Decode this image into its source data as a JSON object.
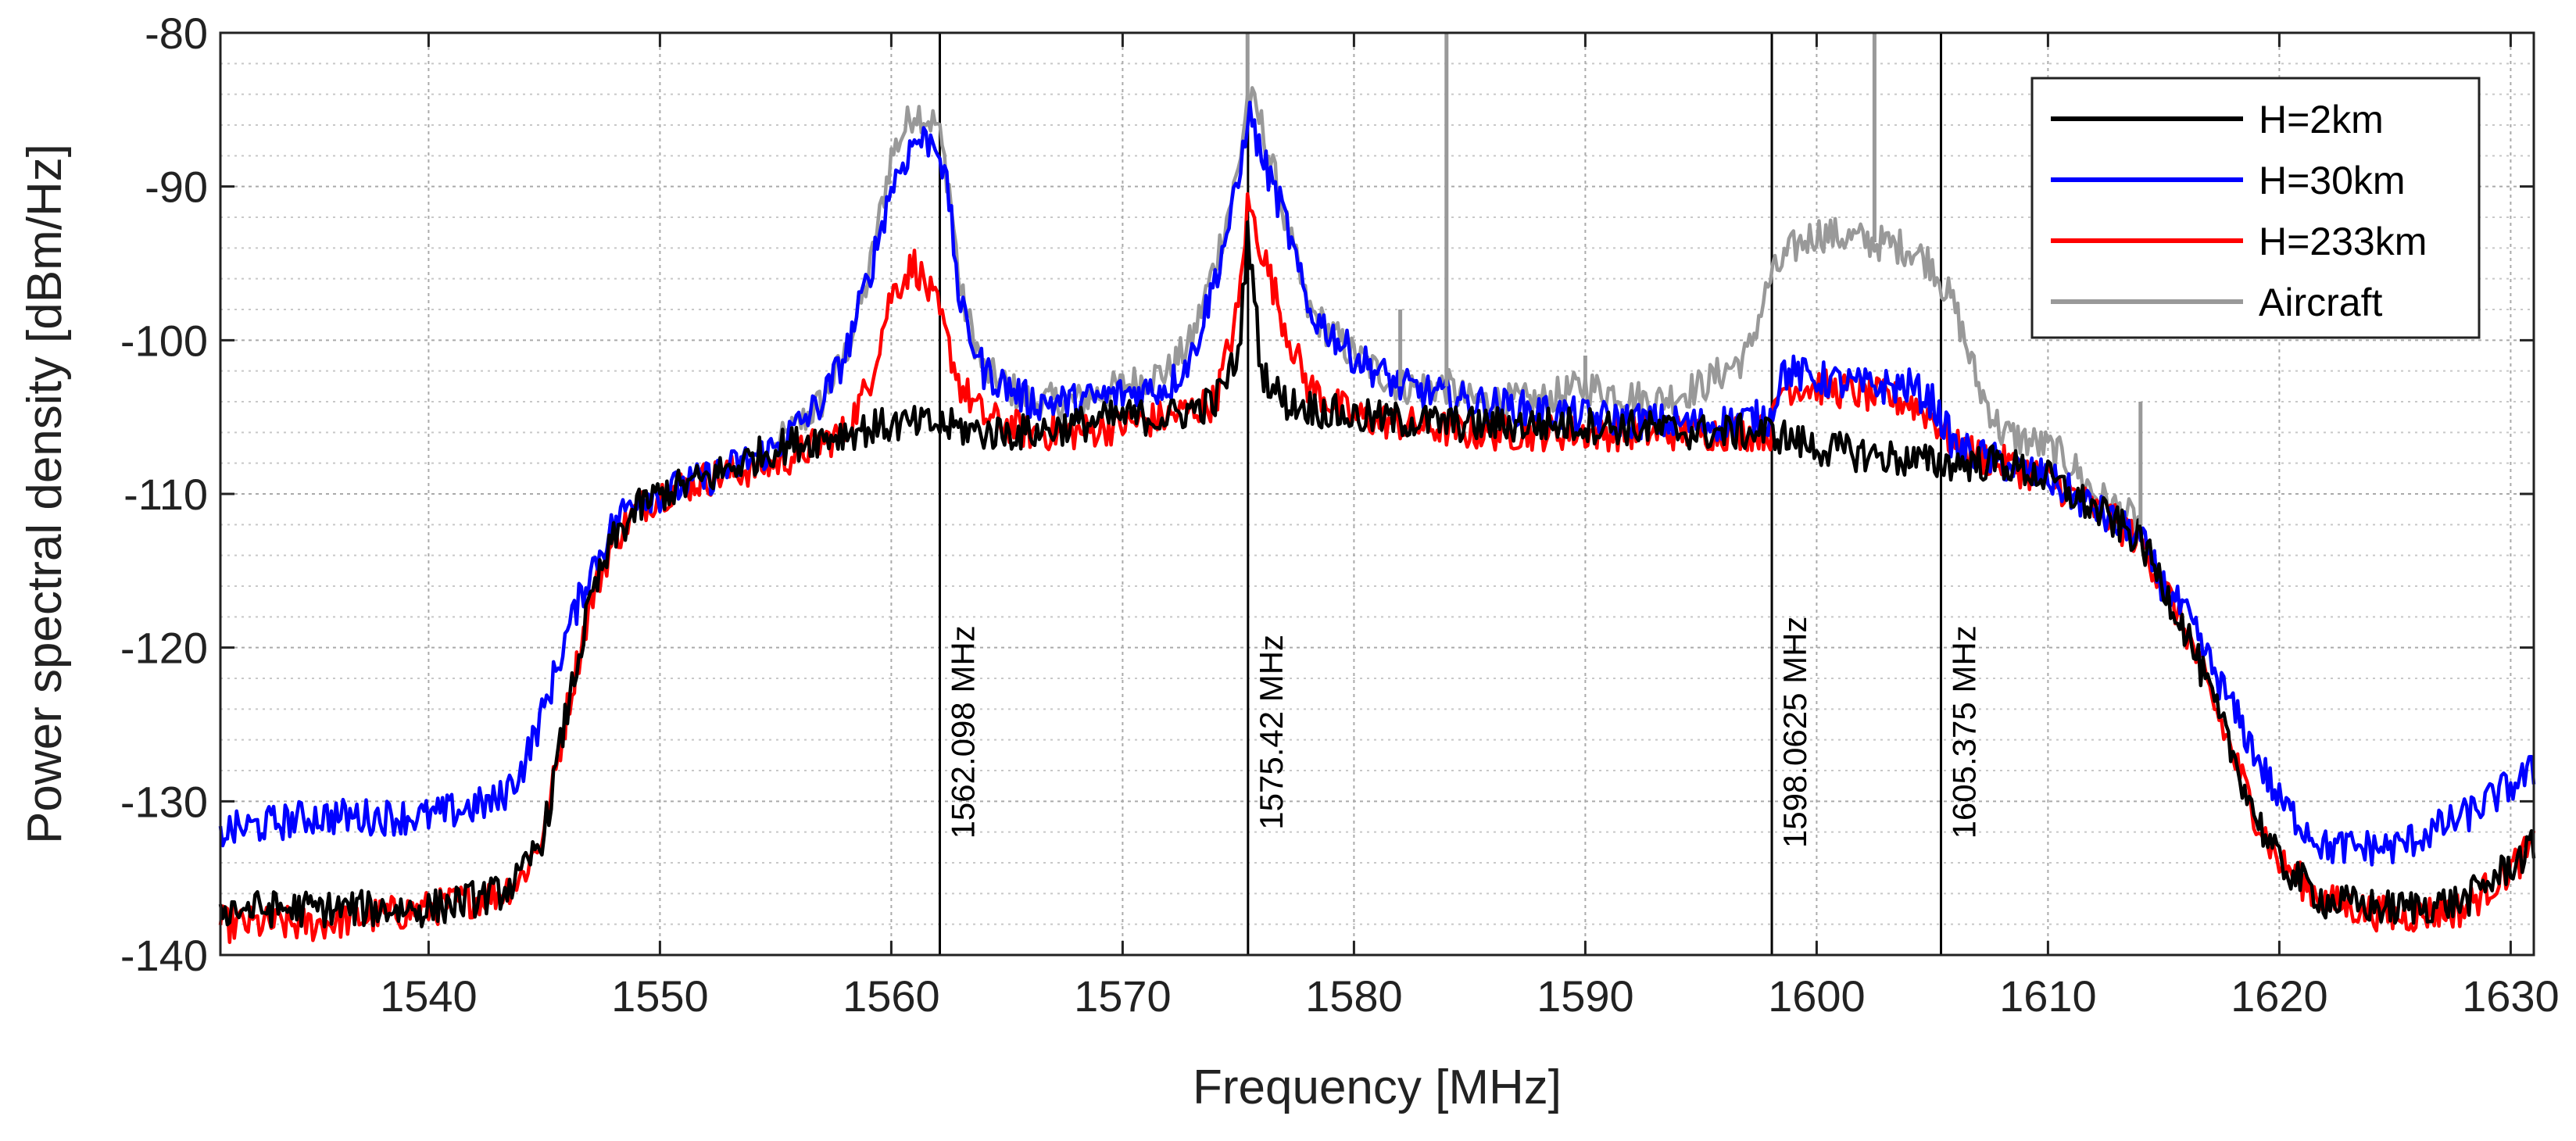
{
  "chart_data": {
    "type": "line",
    "title": "",
    "xlabel": "Frequency [MHz]",
    "ylabel": "Power spectral density [dBm/Hz]",
    "xlim": [
      1531,
      1631
    ],
    "ylim": [
      -140,
      -80
    ],
    "grid": true,
    "legend_position": "top-right",
    "x_ticks": [
      1540,
      1550,
      1560,
      1570,
      1580,
      1590,
      1600,
      1610,
      1620,
      1630
    ],
    "y_ticks": [
      -140,
      -130,
      -120,
      -110,
      -100,
      -90,
      -80
    ],
    "markers": [
      {
        "x": 1562.098,
        "label": "1562.098 MHz"
      },
      {
        "x": 1575.42,
        "label": "1575.42 MHz"
      },
      {
        "x": 1598.0625,
        "label": "1598.0625 MHz"
      },
      {
        "x": 1605.375,
        "label": "1605.375 MHz"
      }
    ],
    "series": [
      {
        "name": "H=2km",
        "color": "#000000",
        "x": [
          1531,
          1535,
          1540,
          1543,
          1544,
          1545,
          1546,
          1547,
          1548,
          1549,
          1550,
          1552,
          1555,
          1558,
          1560,
          1561,
          1562,
          1564,
          1566,
          1568,
          1570,
          1572,
          1574,
          1575,
          1575.42,
          1576,
          1577,
          1580,
          1585,
          1590,
          1595,
          1598,
          1600,
          1605,
          1608,
          1610,
          1612,
          1614,
          1615,
          1616,
          1617,
          1618,
          1619,
          1620,
          1622,
          1625,
          1628,
          1631
        ],
        "values": [
          -137,
          -137,
          -137,
          -136,
          -135,
          -132,
          -124,
          -117,
          -113,
          -111,
          -110,
          -109,
          -107,
          -106,
          -105.5,
          -105.5,
          -105.5,
          -106,
          -106,
          -105.5,
          -105,
          -105,
          -104,
          -101,
          -93,
          -102,
          -104,
          -105,
          -105.5,
          -105.5,
          -106,
          -106,
          -107,
          -108,
          -108,
          -109,
          -111,
          -113,
          -116,
          -119,
          -123,
          -127,
          -131,
          -134,
          -136.5,
          -137,
          -136.5,
          -133
        ]
      },
      {
        "name": "H=30km",
        "color": "#0000ff",
        "x": [
          1531,
          1535,
          1540,
          1543,
          1544,
          1545,
          1546,
          1547,
          1548,
          1549,
          1550,
          1552,
          1555,
          1557,
          1558,
          1559,
          1560,
          1561,
          1562,
          1562.5,
          1563,
          1564,
          1566,
          1568,
          1570,
          1572,
          1573,
          1574,
          1575,
          1575.42,
          1576,
          1577,
          1578,
          1580,
          1582,
          1585,
          1590,
          1595,
          1598,
          1598.5,
          1600,
          1602,
          1604,
          1605,
          1606,
          1608,
          1610,
          1612,
          1614,
          1615,
          1616,
          1617,
          1618,
          1619,
          1620,
          1622,
          1625,
          1628,
          1631
        ],
        "values": [
          -132,
          -131,
          -131,
          -130,
          -128,
          -124,
          -119,
          -115,
          -112,
          -110,
          -110,
          -109,
          -107,
          -104,
          -101,
          -96,
          -90,
          -87,
          -87,
          -91,
          -98,
          -102,
          -104,
          -104,
          -103.5,
          -103,
          -101,
          -96,
          -90,
          -85,
          -88,
          -92,
          -98,
          -101,
          -103,
          -104,
          -105,
          -105.5,
          -105,
          -102,
          -102.5,
          -103,
          -103,
          -104,
          -107,
          -108,
          -109,
          -111,
          -113,
          -116,
          -118,
          -121,
          -124,
          -127,
          -130,
          -133,
          -133,
          -131,
          -128
        ]
      },
      {
        "name": "H=233km",
        "color": "#ff0000",
        "x": [
          1531,
          1535,
          1540,
          1543,
          1544,
          1545,
          1546,
          1547,
          1548,
          1549,
          1550,
          1552,
          1555,
          1558,
          1559,
          1560,
          1561,
          1562,
          1563,
          1564,
          1566,
          1568,
          1570,
          1572,
          1574,
          1575,
          1575.42,
          1576,
          1577,
          1578,
          1580,
          1585,
          1590,
          1595,
          1598,
          1598.5,
          1600,
          1602,
          1604,
          1605,
          1606,
          1608,
          1610,
          1612,
          1614,
          1615,
          1616,
          1617,
          1618,
          1619,
          1620,
          1622,
          1625,
          1628,
          1631
        ],
        "values": [
          -138,
          -138,
          -137,
          -136,
          -135,
          -132,
          -124,
          -117,
          -113,
          -111,
          -110,
          -109,
          -108,
          -106,
          -103,
          -97,
          -95,
          -98,
          -103,
          -105,
          -106,
          -106,
          -105.5,
          -105,
          -104,
          -98,
          -91,
          -94,
          -99,
          -103,
          -105,
          -106,
          -106,
          -106,
          -106,
          -103,
          -103,
          -103.5,
          -104,
          -105,
          -107,
          -108,
          -109,
          -111,
          -113,
          -116,
          -119,
          -123,
          -127,
          -131,
          -134,
          -136.5,
          -137.5,
          -137,
          -133
        ]
      },
      {
        "name": "Aircraft",
        "color": "#999999",
        "x": [
          1555,
          1557,
          1558,
          1559,
          1560,
          1561,
          1562,
          1562.5,
          1563,
          1564,
          1566,
          1568,
          1570,
          1572,
          1573,
          1574,
          1575,
          1575.42,
          1576,
          1577,
          1578,
          1580,
          1582,
          1584,
          1585,
          1588,
          1590,
          1593,
          1595,
          1597,
          1598,
          1599,
          1600,
          1602,
          1604,
          1605,
          1606,
          1607,
          1608,
          1610,
          1611,
          1612,
          1613,
          1614
        ],
        "values": [
          -107,
          -104,
          -101,
          -96,
          -88,
          -85,
          -86,
          -90,
          -97,
          -102,
          -104,
          -104,
          -103,
          -102,
          -100,
          -95,
          -89,
          -84,
          -86,
          -92,
          -98,
          -101,
          -103,
          -103,
          -104,
          -104,
          -103,
          -104,
          -103,
          -101,
          -96,
          -94,
          -93,
          -93.5,
          -94,
          -95,
          -98,
          -103,
          -106,
          -107,
          -108,
          -110,
          -111,
          -112
        ]
      }
    ]
  }
}
